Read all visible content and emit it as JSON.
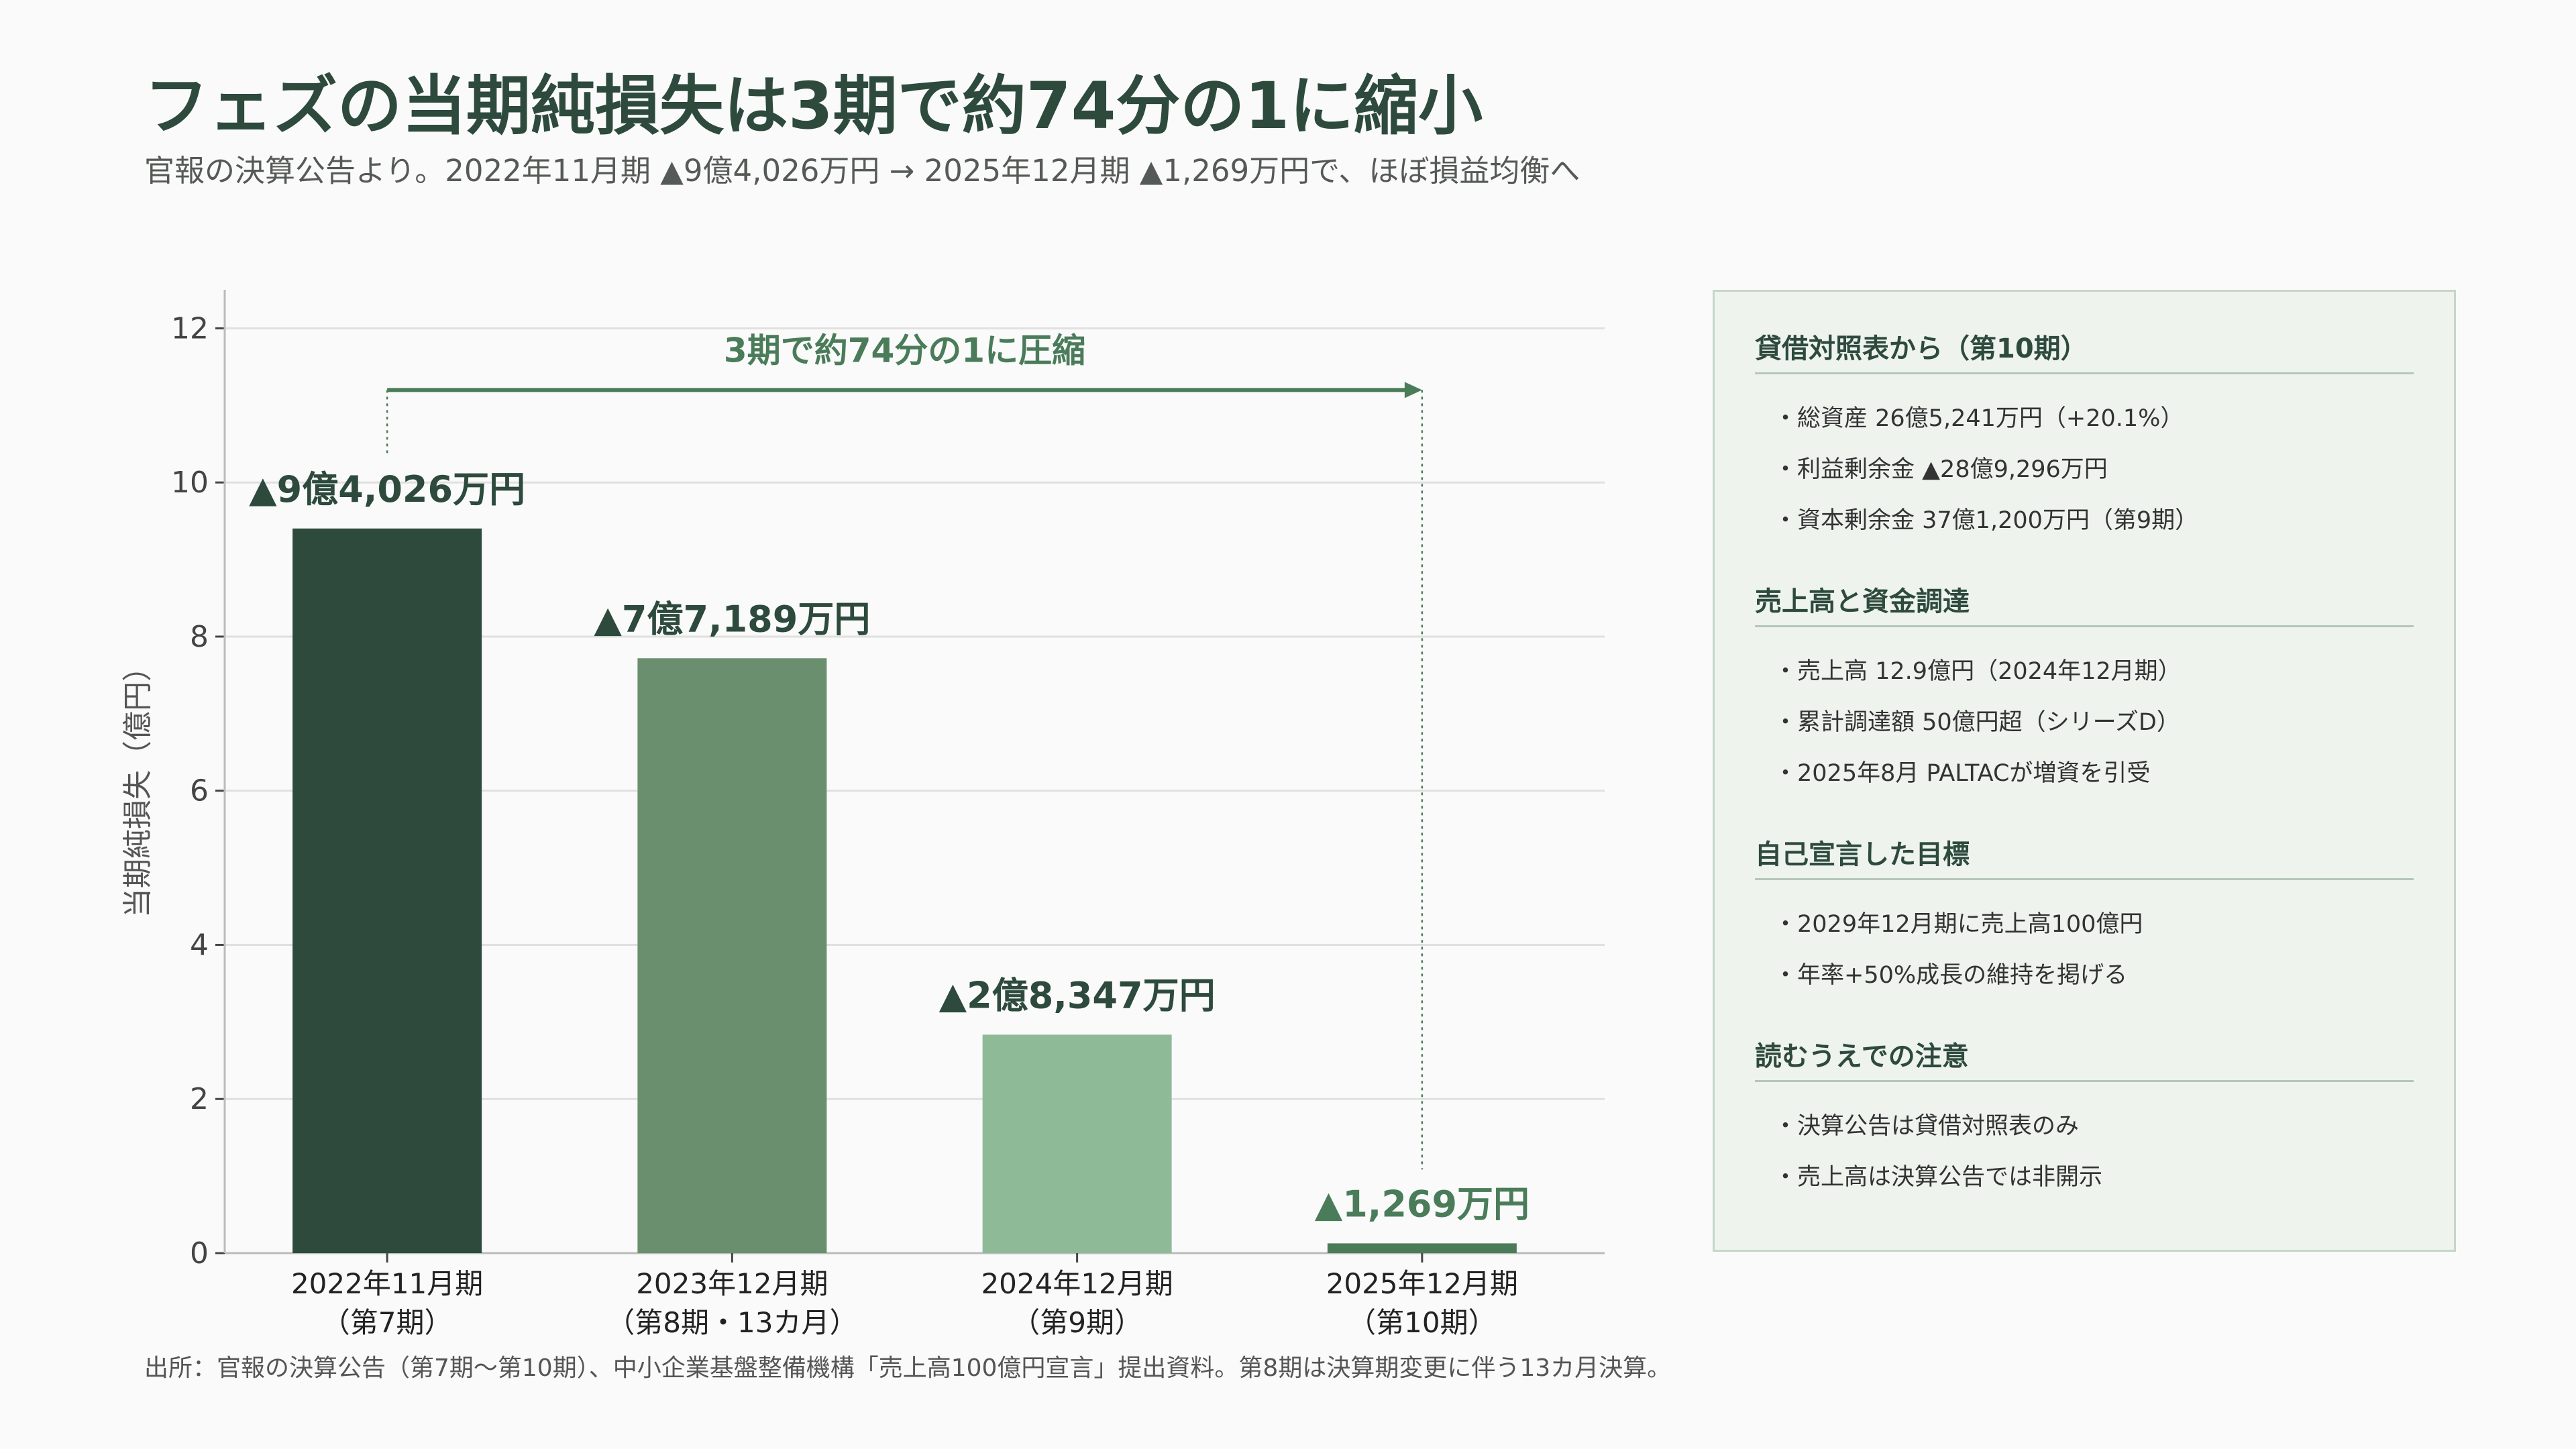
{
  "title": "フェズの当期純損失は3期で約74分の1に縮小",
  "subtitle": "官報の決算公告より。2022年11月期 ▲9億4,026万円 → 2025年12月期 ▲1,269万円で、ほぼ損益均衡へ",
  "footnote": "出所：官報の決算公告（第7期〜第10期）、中小企業基盤整備機構「売上高100億円宣言」提出資料。第8期は決算期変更に伴う13カ月決算。",
  "chart_data": {
    "type": "bar",
    "ylabel": "当期純損失（億円）",
    "ylim": [
      0,
      12.5
    ],
    "yticks": [
      0,
      2,
      4,
      6,
      8,
      10,
      12
    ],
    "grid": true,
    "categories": [
      [
        "2022年11月期",
        "（第7期）"
      ],
      [
        "2023年12月期",
        "（第8期・13カ月）"
      ],
      [
        "2024年12月期",
        "（第9期）"
      ],
      [
        "2025年12月期",
        "（第10期）"
      ]
    ],
    "values": [
      9.4026,
      7.7189,
      2.8347,
      0.1269
    ],
    "data_labels": [
      "▲9億4,026万円",
      "▲7億7,189万円",
      "▲2億8,347万円",
      "▲1,269万円"
    ],
    "bar_colors": [
      "#2d4a3d",
      "#6a8f6f",
      "#8fba98",
      "#4a7c59"
    ],
    "label_colors": [
      "#2d4a3d",
      "#2d4a3d",
      "#2d4a3d",
      "#4a7c59"
    ],
    "annotation": "3期で約74分の1に圧縮",
    "annotation_color": "#4a7c59",
    "grid_color": "#e0e0e0"
  },
  "side_panel": {
    "sections": [
      {
        "title": "貸借対照表から（第10期）",
        "items": [
          "総資産 26億5,241万円（+20.1%）",
          "利益剰余金 ▲28億9,296万円",
          "資本剰余金 37億1,200万円（第9期）"
        ]
      },
      {
        "title": "売上高と資金調達",
        "items": [
          "売上高 12.9億円（2024年12月期）",
          "累計調達額 50億円超（シリーズD）",
          "2025年8月 PALTACが増資を引受"
        ]
      },
      {
        "title": "自己宣言した目標",
        "items": [
          "2029年12月期に売上高100億円",
          "年率+50%成長の維持を掲げる"
        ]
      },
      {
        "title": "読むうえでの注意",
        "items": [
          "決算公告は貸借対照表のみ",
          "売上高は決算公告では非開示"
        ]
      }
    ]
  }
}
